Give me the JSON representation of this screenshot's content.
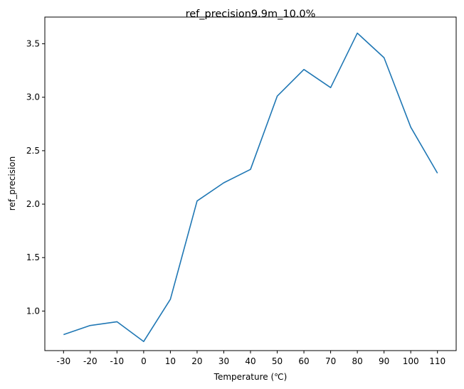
{
  "chart_data": {
    "type": "line",
    "title": "ref_precision9.9m_10.0%",
    "xlabel": "Temperature (℃)",
    "ylabel": "ref_precision",
    "categories": [
      "-30",
      "-20",
      "-10",
      "0",
      "10",
      "20",
      "30",
      "40",
      "50",
      "60",
      "70",
      "80",
      "90",
      "100",
      "110"
    ],
    "series": [
      {
        "values": [
          0.78,
          0.865,
          0.9,
          0.715,
          1.11,
          2.03,
          2.2,
          2.325,
          3.01,
          3.26,
          3.09,
          3.6,
          3.37,
          2.72,
          2.29
        ]
      }
    ],
    "ylim": [
      0.63,
      3.75
    ],
    "yticks": [
      1.0,
      1.5,
      2.0,
      2.5,
      3.0,
      3.5
    ],
    "ytick_labels": [
      "1.0",
      "1.5",
      "2.0",
      "2.5",
      "3.0",
      "3.5"
    ],
    "grid": false,
    "line_color": "#1f77b4"
  }
}
